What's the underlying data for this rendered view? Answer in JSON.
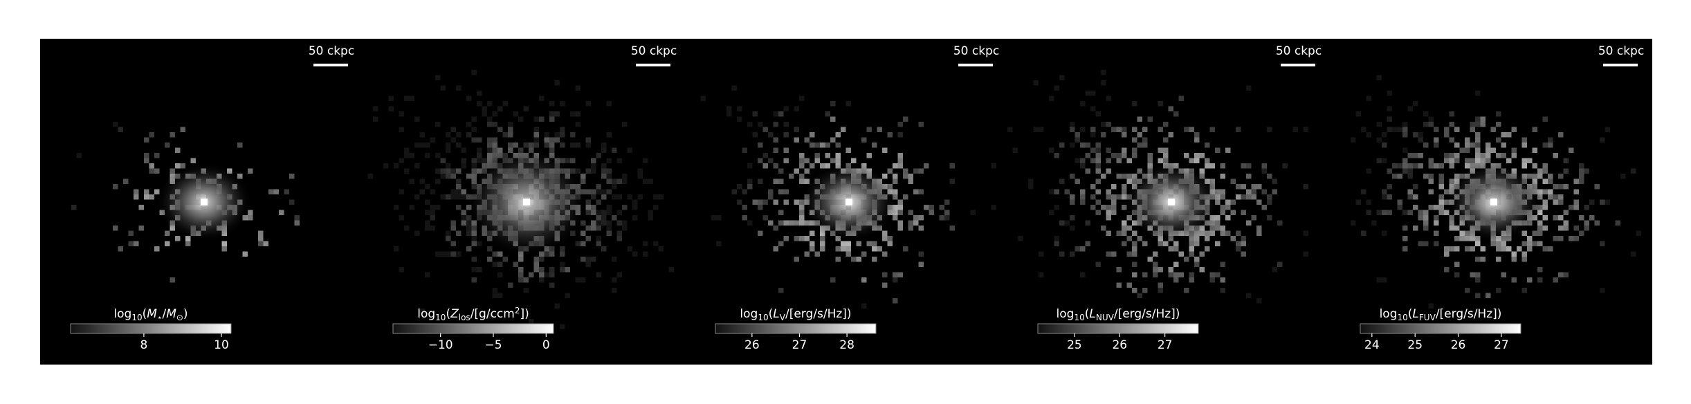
{
  "chart_data": [
    {
      "type": "image",
      "scalebar": "50 ckpc",
      "colorbar": {
        "label": [
          "log",
          {
            "sub": "10"
          },
          "(",
          {
            "it": "M"
          },
          {
            "sub": "⋆"
          },
          "/",
          {
            "it": "M"
          },
          {
            "sub": "⊙"
          },
          ")"
        ],
        "clim": [
          6.11,
          10.25
        ],
        "ticks": [
          8,
          10
        ]
      }
    },
    {
      "type": "image",
      "scalebar": "50 ckpc",
      "colorbar": {
        "label": [
          "log",
          {
            "sub": "10"
          },
          "(",
          {
            "it": "Z"
          },
          {
            "sub": "los"
          },
          "/[g/ccm",
          {
            "sup": "2"
          },
          "])"
        ],
        "clim": [
          -14.5,
          0.7
        ],
        "ticks": [
          {
            "value": -10,
            "label": "−10"
          },
          {
            "value": -5,
            "label": "−5"
          },
          0
        ]
      }
    },
    {
      "type": "image",
      "scalebar": "50 ckpc",
      "colorbar": {
        "label": [
          "log",
          {
            "sub": "10"
          },
          "(",
          {
            "it": "L"
          },
          {
            "sub": "V"
          },
          "/[erg/s/Hz])"
        ],
        "clim": [
          25.23,
          28.61
        ],
        "ticks": [
          26,
          27,
          28
        ]
      }
    },
    {
      "type": "image",
      "scalebar": "50 ckpc",
      "colorbar": {
        "label": [
          "log",
          {
            "sub": "10"
          },
          "(",
          {
            "it": "L"
          },
          {
            "sub": "NUV"
          },
          "/[erg/s/Hz])"
        ],
        "clim": [
          24.19,
          27.74
        ],
        "ticks": [
          25,
          26,
          27
        ]
      }
    },
    {
      "type": "image",
      "scalebar": "50 ckpc",
      "colorbar": {
        "label": [
          "log",
          {
            "sub": "10"
          },
          "(",
          {
            "it": "L"
          },
          {
            "sub": "FUV"
          },
          "/[erg/s/Hz])"
        ],
        "clim": [
          23.73,
          27.45
        ],
        "ticks": [
          24,
          25,
          26,
          27
        ]
      }
    }
  ]
}
